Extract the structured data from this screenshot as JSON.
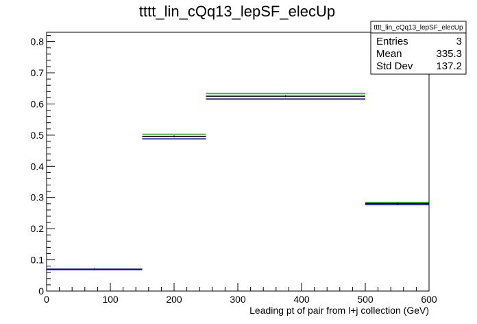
{
  "chart_data": {
    "type": "histogram",
    "title": "tttt_lin_cQq13_lepSF_elecUp",
    "xlabel": "Leading pt of pair from l+j collection (GeV)",
    "ylabel": "",
    "xlim": [
      0,
      600
    ],
    "ylim": [
      0,
      0.83
    ],
    "x_ticks": [
      "0",
      "100",
      "200",
      "300",
      "400",
      "500",
      "600"
    ],
    "y_ticks": [
      "0",
      "0.1",
      "0.2",
      "0.3",
      "0.4",
      "0.5",
      "0.6",
      "0.7",
      "0.8"
    ],
    "bins": [
      {
        "x0": 0,
        "x1": 150,
        "x_center": 75
      },
      {
        "x0": 150,
        "x1": 250,
        "x_center": 200
      },
      {
        "x0": 250,
        "x1": 500,
        "x_center": 375
      },
      {
        "x0": 500,
        "x1": 600,
        "x_center": 550
      }
    ],
    "series": [
      {
        "color": "#00cc00",
        "values": [
          0.07,
          0.503,
          0.634,
          0.284
        ]
      },
      {
        "color": "#000000",
        "values": [
          0.07,
          0.496,
          0.625,
          0.281
        ]
      },
      {
        "color": "#0000cc",
        "values": [
          0.069,
          0.488,
          0.616,
          0.277
        ]
      }
    ],
    "grid": false,
    "legend": "none",
    "stats": {
      "name": "tttt_lin_cQq13_lepSF_elecUp",
      "rows": [
        {
          "label": "Entries",
          "value": "3"
        },
        {
          "label": "Mean",
          "value": "335.3"
        },
        {
          "label": "Std Dev",
          "value": "137.2"
        }
      ]
    }
  }
}
